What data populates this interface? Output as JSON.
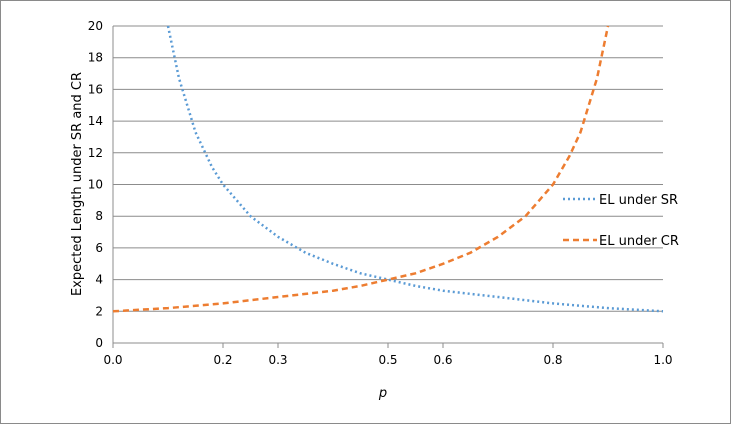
{
  "chart_data": {
    "type": "line",
    "title": "",
    "xlabel": "p",
    "ylabel": "Expected Length under SR and CR",
    "xlim": [
      0,
      1
    ],
    "ylim": [
      0,
      20
    ],
    "x_ticks": [
      0,
      0.2,
      0.3,
      0.5,
      0.6,
      0.8,
      1.0
    ],
    "x_tick_labels": [
      "0.0",
      "0.2",
      "0.3",
      "0.5",
      "0.6",
      "0.8",
      "1.0"
    ],
    "y_ticks": [
      0,
      2,
      4,
      6,
      8,
      10,
      12,
      14,
      16,
      18,
      20
    ],
    "y_tick_labels": [
      "0",
      "2",
      "4",
      "6",
      "8",
      "10",
      "12",
      "14",
      "16",
      "18",
      "20"
    ],
    "grid": "horizontal",
    "legend_position": "right",
    "series": [
      {
        "name": "EL under SR",
        "color": "#5b9bd5",
        "style": "dotted",
        "x": [
          0.1,
          0.12,
          0.15,
          0.18,
          0.2,
          0.25,
          0.3,
          0.35,
          0.4,
          0.45,
          0.5,
          0.55,
          0.6,
          0.65,
          0.7,
          0.75,
          0.8,
          0.85,
          0.9,
          0.95,
          1.0
        ],
        "y": [
          20.0,
          16.7,
          13.3,
          11.1,
          10.0,
          8.0,
          6.7,
          5.7,
          5.0,
          4.4,
          4.0,
          3.6,
          3.3,
          3.1,
          2.9,
          2.7,
          2.5,
          2.35,
          2.2,
          2.1,
          2.0
        ]
      },
      {
        "name": "EL under CR",
        "color": "#ed7d31",
        "style": "dashed",
        "x": [
          0.0,
          0.05,
          0.1,
          0.15,
          0.2,
          0.25,
          0.3,
          0.35,
          0.4,
          0.45,
          0.5,
          0.55,
          0.6,
          0.65,
          0.7,
          0.75,
          0.8,
          0.83,
          0.85,
          0.88,
          0.9
        ],
        "y": [
          2.0,
          2.1,
          2.2,
          2.35,
          2.5,
          2.7,
          2.9,
          3.1,
          3.3,
          3.6,
          4.0,
          4.4,
          5.0,
          5.7,
          6.7,
          8.0,
          10.0,
          11.8,
          13.3,
          16.7,
          20.0
        ]
      }
    ]
  }
}
